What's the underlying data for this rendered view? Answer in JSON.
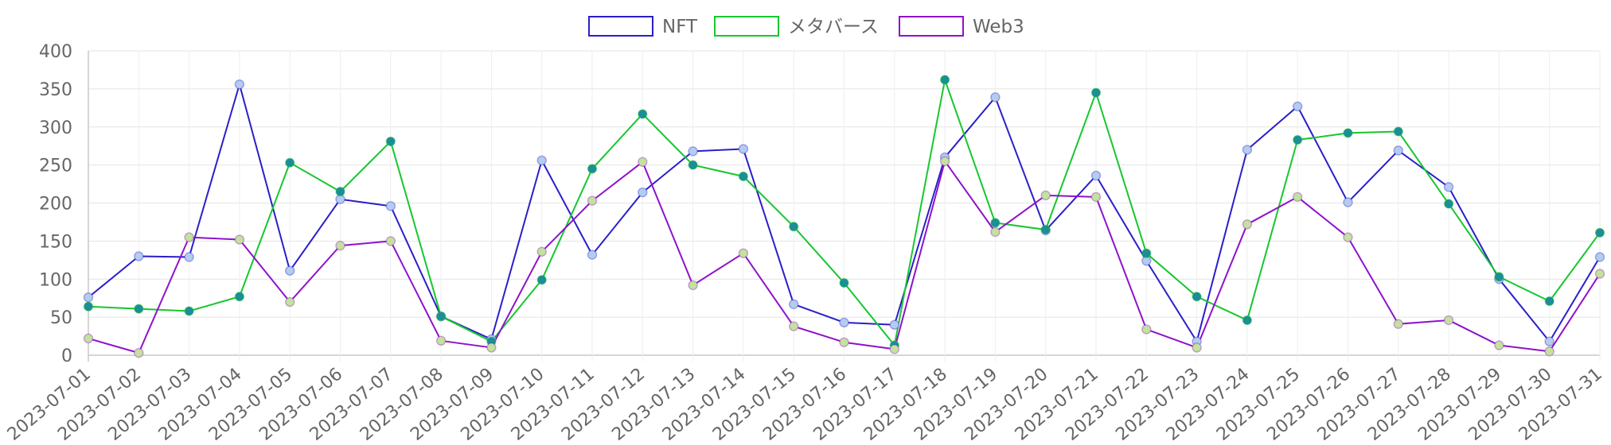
{
  "chart_data": {
    "type": "line",
    "title": "",
    "xlabel": "",
    "ylabel": "",
    "ylim": [
      0,
      400
    ],
    "yticks": [
      0,
      50,
      100,
      150,
      200,
      250,
      300,
      350,
      400
    ],
    "grid": true,
    "legend_position": "top-center",
    "categories": [
      "2023-07-01",
      "2023-07-02",
      "2023-07-03",
      "2023-07-04",
      "2023-07-05",
      "2023-07-06",
      "2023-07-07",
      "2023-07-08",
      "2023-07-09",
      "2023-07-10",
      "2023-07-11",
      "2023-07-12",
      "2023-07-13",
      "2023-07-14",
      "2023-07-15",
      "2023-07-16",
      "2023-07-17",
      "2023-07-18",
      "2023-07-19",
      "2023-07-20",
      "2023-07-21",
      "2023-07-22",
      "2023-07-23",
      "2023-07-24",
      "2023-07-25",
      "2023-07-26",
      "2023-07-27",
      "2023-07-28",
      "2023-07-29",
      "2023-07-30",
      "2023-07-31"
    ],
    "series": [
      {
        "name": "NFT",
        "color": "#2a1fc9",
        "point_color": "#b3cdef",
        "values": [
          76,
          130,
          129,
          356,
          111,
          205,
          196,
          51,
          21,
          256,
          132,
          214,
          268,
          271,
          67,
          43,
          40,
          260,
          339,
          164,
          236,
          124,
          18,
          270,
          327,
          201,
          269,
          221,
          100,
          18,
          129
        ]
      },
      {
        "name": "メタバース",
        "color": "#17c72e",
        "point_color": "#1b8e97",
        "values": [
          64,
          61,
          58,
          77,
          253,
          215,
          281,
          51,
          18,
          99,
          245,
          317,
          250,
          235,
          169,
          95,
          13,
          362,
          174,
          165,
          345,
          134,
          77,
          46,
          283,
          292,
          294,
          199,
          103,
          71,
          161
        ]
      },
      {
        "name": "Web3",
        "color": "#8e12cc",
        "point_color": "#c3e29c",
        "values": [
          22,
          3,
          155,
          152,
          70,
          144,
          150,
          19,
          10,
          136,
          203,
          254,
          92,
          134,
          38,
          17,
          8,
          255,
          162,
          210,
          208,
          34,
          10,
          172,
          208,
          155,
          41,
          46,
          13,
          5,
          107
        ]
      }
    ]
  }
}
